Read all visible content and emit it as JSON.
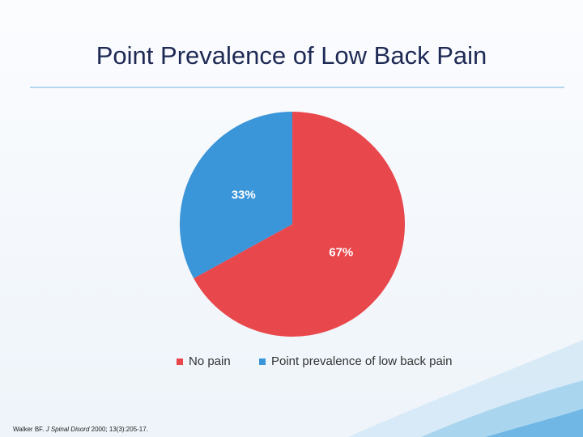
{
  "chart_data": {
    "type": "pie",
    "title": "Point Prevalence of Low Back Pain",
    "categories": [
      "No pain",
      "Point prevalence of low back pain"
    ],
    "values": [
      67,
      33
    ],
    "value_labels": [
      "67%",
      "33%"
    ],
    "colors": [
      "#e8474c",
      "#3b95d9"
    ],
    "legend": "bottom",
    "citation": {
      "author": "Walker BF.",
      "journal": "J Spinal Disord",
      "details": "2000; 13(3):205-17."
    }
  }
}
